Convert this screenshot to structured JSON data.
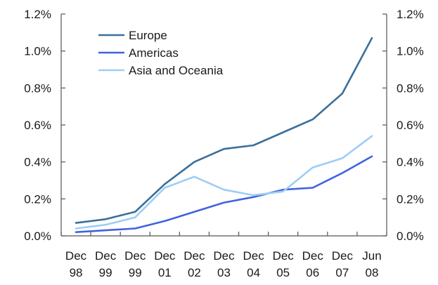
{
  "chart_data": {
    "type": "line",
    "title": "",
    "xlabel": "",
    "ylabel": "",
    "categories": [
      [
        "Dec",
        "98"
      ],
      [
        "Dec",
        "99"
      ],
      [
        "Dec",
        "99"
      ],
      [
        "Dec",
        "01"
      ],
      [
        "Dec",
        "02"
      ],
      [
        "Dec",
        "03"
      ],
      [
        "Dec",
        "04"
      ],
      [
        "Dec",
        "05"
      ],
      [
        "Dec",
        "06"
      ],
      [
        "Dec",
        "07"
      ],
      [
        "Jun",
        "08"
      ]
    ],
    "ylim": [
      0,
      1.2
    ],
    "yticks": [
      "0.0%",
      "0.2%",
      "0.4%",
      "0.6%",
      "0.8%",
      "1.0%",
      "1.2%"
    ],
    "secondary_axis": true,
    "grid": false,
    "legend_position": "top-left",
    "series": [
      {
        "name": "Europe",
        "color": "#3a6f9a",
        "values": [
          0.07,
          0.09,
          0.13,
          0.28,
          0.4,
          0.47,
          0.49,
          0.56,
          0.63,
          0.77,
          1.07
        ]
      },
      {
        "name": "Americas",
        "color": "#3f63e0",
        "values": [
          0.02,
          0.03,
          0.04,
          0.08,
          0.13,
          0.18,
          0.21,
          0.25,
          0.26,
          0.34,
          0.43
        ]
      },
      {
        "name": "Asia and Oceania",
        "color": "#9fcdf5",
        "values": [
          0.04,
          0.06,
          0.1,
          0.26,
          0.32,
          0.25,
          0.22,
          0.24,
          0.37,
          0.42,
          0.54
        ]
      }
    ]
  }
}
